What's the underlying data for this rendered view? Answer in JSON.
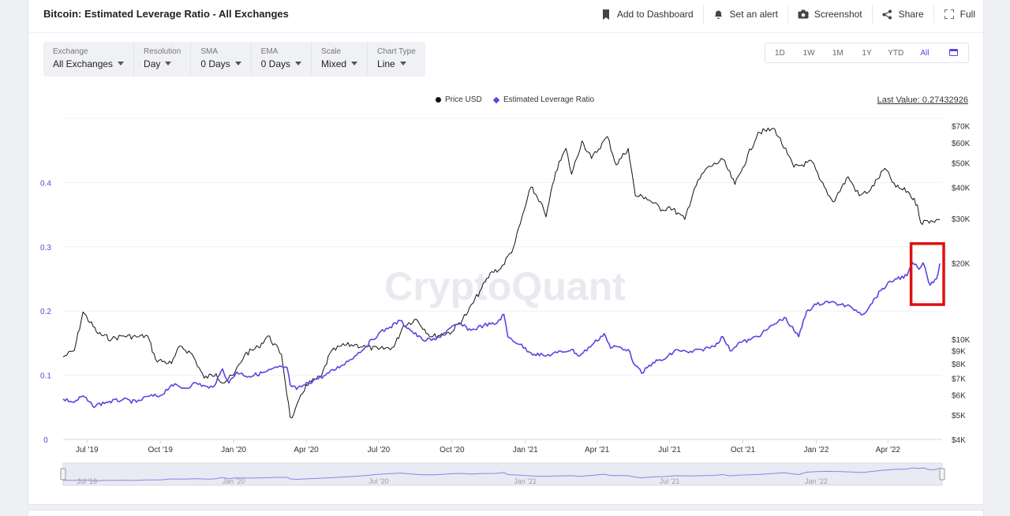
{
  "header": {
    "title": "Bitcoin: Estimated Leverage Ratio - All Exchanges",
    "actions": {
      "dashboard": "Add to Dashboard",
      "alert": "Set an alert",
      "screenshot": "Screenshot",
      "share": "Share",
      "full": "Full"
    }
  },
  "filters": {
    "exchange": {
      "label": "Exchange",
      "value": "All Exchanges"
    },
    "resolution": {
      "label": "Resolution",
      "value": "Day"
    },
    "sma": {
      "label": "SMA",
      "value": "0 Days"
    },
    "ema": {
      "label": "EMA",
      "value": "0 Days"
    },
    "scale": {
      "label": "Scale",
      "value": "Mixed"
    },
    "chart_type": {
      "label": "Chart Type",
      "value": "Line"
    }
  },
  "ranges": {
    "d1": "1D",
    "w1": "1W",
    "m1": "1M",
    "y1": "1Y",
    "ytd": "YTD",
    "all": "All",
    "active": "All"
  },
  "legend": {
    "price": "Price USD",
    "elr": "Estimated Leverage Ratio"
  },
  "last_value": "Last Value: 0.27432926",
  "watermark": "CryptoQuant",
  "colors": {
    "price": "#111111",
    "elr": "#5b45e0",
    "accent": "#5b45e0",
    "highlight": "#e01010"
  },
  "chart_data": {
    "type": "line",
    "x_tick_labels": [
      "Jul '19",
      "Oct '19",
      "Jan '20",
      "Apr '20",
      "Jul '20",
      "Oct '20",
      "Jan '21",
      "Apr '21",
      "Jul '21",
      "Oct '21",
      "Jan '22",
      "Apr '22"
    ],
    "navigator_labels": [
      "Jul '19",
      "Jan '20",
      "Jul '20",
      "Jan '21",
      "Jul '21",
      "Jan '22"
    ],
    "y_left": {
      "ticks": [
        0,
        0.1,
        0.2,
        0.3,
        0.4
      ],
      "labels": [
        "0",
        "0.1",
        "0.2",
        "0.3",
        "0.4"
      ],
      "range": [
        0,
        0.5
      ]
    },
    "y_right": {
      "scale": "log",
      "ticks": [
        4000,
        5000,
        6000,
        7000,
        8000,
        9000,
        10000,
        20000,
        30000,
        40000,
        50000,
        60000,
        70000
      ],
      "labels": [
        "$4K",
        "$5K",
        "$6K",
        "$7K",
        "$8K",
        "$9K",
        "$10K",
        "$20K",
        "$30K",
        "$40K",
        "$50K",
        "$60K",
        "$70K"
      ],
      "range": [
        4000,
        75000
      ]
    },
    "series": [
      {
        "name": "Price USD",
        "axis": "right",
        "points": [
          [
            "2019-06-01",
            8500
          ],
          [
            "2019-06-15",
            9000
          ],
          [
            "2019-06-26",
            12800
          ],
          [
            "2019-07-15",
            10500
          ],
          [
            "2019-08-01",
            10000
          ],
          [
            "2019-08-15",
            10300
          ],
          [
            "2019-09-01",
            10200
          ],
          [
            "2019-09-15",
            10300
          ],
          [
            "2019-09-25",
            8300
          ],
          [
            "2019-10-15",
            8000
          ],
          [
            "2019-10-26",
            9400
          ],
          [
            "2019-11-10",
            8700
          ],
          [
            "2019-11-25",
            7000
          ],
          [
            "2019-12-10",
            7300
          ],
          [
            "2019-12-18",
            6700
          ],
          [
            "2020-01-01",
            7200
          ],
          [
            "2020-01-15",
            8700
          ],
          [
            "2020-02-01",
            9300
          ],
          [
            "2020-02-13",
            10300
          ],
          [
            "2020-03-01",
            8700
          ],
          [
            "2020-03-12",
            4900
          ],
          [
            "2020-03-16",
            5000
          ],
          [
            "2020-04-01",
            6600
          ],
          [
            "2020-04-20",
            7100
          ],
          [
            "2020-05-01",
            8800
          ],
          [
            "2020-05-15",
            9400
          ],
          [
            "2020-06-01",
            9500
          ],
          [
            "2020-06-15",
            9300
          ],
          [
            "2020-07-01",
            9100
          ],
          [
            "2020-07-20",
            9300
          ],
          [
            "2020-08-01",
            11300
          ],
          [
            "2020-08-17",
            12000
          ],
          [
            "2020-09-05",
            10200
          ],
          [
            "2020-10-01",
            10700
          ],
          [
            "2020-10-21",
            12800
          ],
          [
            "2020-11-05",
            15500
          ],
          [
            "2020-11-20",
            18500
          ],
          [
            "2020-12-01",
            19000
          ],
          [
            "2020-12-17",
            23000
          ],
          [
            "2021-01-08",
            40000
          ],
          [
            "2021-01-20",
            35000
          ],
          [
            "2021-01-27",
            30500
          ],
          [
            "2021-02-08",
            46000
          ],
          [
            "2021-02-21",
            57000
          ],
          [
            "2021-02-28",
            45000
          ],
          [
            "2021-03-13",
            61000
          ],
          [
            "2021-03-25",
            52000
          ],
          [
            "2021-04-14",
            63500
          ],
          [
            "2021-04-25",
            49000
          ],
          [
            "2021-05-10",
            57000
          ],
          [
            "2021-05-19",
            37000
          ],
          [
            "2021-06-01",
            36500
          ],
          [
            "2021-06-22",
            32500
          ],
          [
            "2021-07-01",
            33500
          ],
          [
            "2021-07-20",
            29800
          ],
          [
            "2021-08-01",
            39500
          ],
          [
            "2021-08-15",
            47000
          ],
          [
            "2021-09-06",
            51500
          ],
          [
            "2021-09-21",
            41000
          ],
          [
            "2021-10-01",
            48000
          ],
          [
            "2021-10-20",
            66000
          ],
          [
            "2021-11-10",
            68000
          ],
          [
            "2021-11-26",
            54000
          ],
          [
            "2021-12-04",
            48000
          ],
          [
            "2021-12-27",
            50500
          ],
          [
            "2022-01-05",
            43000
          ],
          [
            "2022-01-22",
            35000
          ],
          [
            "2022-02-10",
            44000
          ],
          [
            "2022-02-24",
            37000
          ],
          [
            "2022-03-10",
            39000
          ],
          [
            "2022-03-28",
            47500
          ],
          [
            "2022-04-11",
            40000
          ],
          [
            "2022-04-26",
            38500
          ],
          [
            "2022-05-08",
            34000
          ],
          [
            "2022-05-12",
            29000
          ],
          [
            "2022-05-25",
            29500
          ],
          [
            "2022-06-05",
            29700
          ]
        ]
      },
      {
        "name": "Estimated Leverage Ratio",
        "axis": "left",
        "points": [
          [
            "2019-06-01",
            0.063
          ],
          [
            "2019-06-15",
            0.058
          ],
          [
            "2019-06-26",
            0.068
          ],
          [
            "2019-07-08",
            0.052
          ],
          [
            "2019-07-25",
            0.058
          ],
          [
            "2019-08-15",
            0.062
          ],
          [
            "2019-09-01",
            0.058
          ],
          [
            "2019-09-15",
            0.067
          ],
          [
            "2019-10-01",
            0.068
          ],
          [
            "2019-10-15",
            0.085
          ],
          [
            "2019-11-01",
            0.08
          ],
          [
            "2019-11-15",
            0.088
          ],
          [
            "2019-12-01",
            0.08
          ],
          [
            "2019-12-10",
            0.088
          ],
          [
            "2019-12-18",
            0.11
          ],
          [
            "2019-12-26",
            0.088
          ],
          [
            "2020-01-05",
            0.105
          ],
          [
            "2020-01-20",
            0.098
          ],
          [
            "2020-02-10",
            0.105
          ],
          [
            "2020-02-25",
            0.112
          ],
          [
            "2020-03-08",
            0.112
          ],
          [
            "2020-03-12",
            0.085
          ],
          [
            "2020-03-20",
            0.078
          ],
          [
            "2020-04-10",
            0.092
          ],
          [
            "2020-04-25",
            0.1
          ],
          [
            "2020-05-15",
            0.115
          ],
          [
            "2020-06-01",
            0.13
          ],
          [
            "2020-06-15",
            0.145
          ],
          [
            "2020-07-01",
            0.165
          ],
          [
            "2020-07-15",
            0.175
          ],
          [
            "2020-07-28",
            0.185
          ],
          [
            "2020-08-10",
            0.17
          ],
          [
            "2020-08-25",
            0.155
          ],
          [
            "2020-09-10",
            0.155
          ],
          [
            "2020-09-25",
            0.17
          ],
          [
            "2020-10-10",
            0.18
          ],
          [
            "2020-10-25",
            0.17
          ],
          [
            "2020-11-10",
            0.178
          ],
          [
            "2020-11-25",
            0.18
          ],
          [
            "2020-12-05",
            0.195
          ],
          [
            "2020-12-10",
            0.16
          ],
          [
            "2020-12-25",
            0.148
          ],
          [
            "2021-01-08",
            0.135
          ],
          [
            "2021-01-25",
            0.13
          ],
          [
            "2021-02-10",
            0.135
          ],
          [
            "2021-02-28",
            0.14
          ],
          [
            "2021-03-10",
            0.13
          ],
          [
            "2021-03-28",
            0.15
          ],
          [
            "2021-04-10",
            0.165
          ],
          [
            "2021-04-18",
            0.142
          ],
          [
            "2021-04-25",
            0.145
          ],
          [
            "2021-05-10",
            0.14
          ],
          [
            "2021-05-19",
            0.115
          ],
          [
            "2021-05-27",
            0.103
          ],
          [
            "2021-06-10",
            0.12
          ],
          [
            "2021-06-25",
            0.125
          ],
          [
            "2021-07-10",
            0.14
          ],
          [
            "2021-07-25",
            0.135
          ],
          [
            "2021-08-10",
            0.14
          ],
          [
            "2021-08-25",
            0.145
          ],
          [
            "2021-09-06",
            0.16
          ],
          [
            "2021-09-15",
            0.138
          ],
          [
            "2021-09-25",
            0.15
          ],
          [
            "2021-10-10",
            0.155
          ],
          [
            "2021-10-25",
            0.165
          ],
          [
            "2021-11-10",
            0.18
          ],
          [
            "2021-11-22",
            0.19
          ],
          [
            "2021-12-04",
            0.17
          ],
          [
            "2021-12-10",
            0.16
          ],
          [
            "2021-12-20",
            0.2
          ],
          [
            "2022-01-01",
            0.21
          ],
          [
            "2022-01-15",
            0.215
          ],
          [
            "2022-02-01",
            0.21
          ],
          [
            "2022-02-15",
            0.205
          ],
          [
            "2022-03-01",
            0.195
          ],
          [
            "2022-03-10",
            0.21
          ],
          [
            "2022-03-25",
            0.235
          ],
          [
            "2022-04-10",
            0.25
          ],
          [
            "2022-04-25",
            0.255
          ],
          [
            "2022-05-02",
            0.275
          ],
          [
            "2022-05-10",
            0.265
          ],
          [
            "2022-05-15",
            0.275
          ],
          [
            "2022-05-20",
            0.255
          ],
          [
            "2022-05-24",
            0.24
          ],
          [
            "2022-06-01",
            0.25
          ],
          [
            "2022-06-05",
            0.274
          ]
        ]
      }
    ],
    "highlight": {
      "x_range": [
        "2022-04-30",
        "2022-06-10"
      ],
      "y_range": [
        0.21,
        0.305
      ],
      "color": "#e01010"
    },
    "grid": true,
    "legend_position": "top-center"
  }
}
